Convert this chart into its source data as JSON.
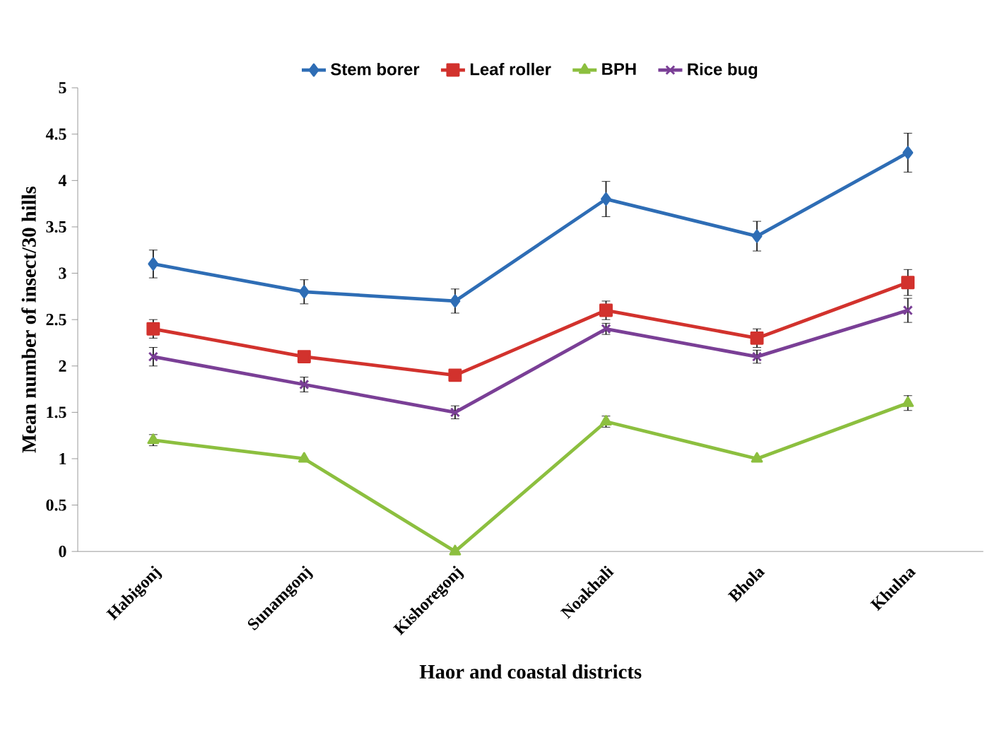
{
  "chart_data": {
    "type": "line",
    "xlabel": "Haor and coastal districts",
    "ylabel": "Mean number of insect/30 hills",
    "categories": [
      "Habigonj",
      "Sunamgonj",
      "Kishoregonj",
      "Noakhali",
      "Bhola",
      "Khulna"
    ],
    "series": [
      {
        "name": "Stem borer",
        "color": "#2e6db5",
        "marker": "diamond",
        "values": [
          3.1,
          2.8,
          2.7,
          3.8,
          3.4,
          4.3
        ],
        "errors": [
          0.15,
          0.13,
          0.13,
          0.19,
          0.16,
          0.21
        ]
      },
      {
        "name": "Leaf roller",
        "color": "#d2322d",
        "marker": "square",
        "values": [
          2.4,
          2.1,
          1.9,
          2.6,
          2.3,
          2.9
        ],
        "errors": [
          0.1,
          null,
          null,
          0.1,
          0.1,
          0.14
        ]
      },
      {
        "name": "BPH",
        "color": "#8cbf3f",
        "marker": "triangle",
        "values": [
          1.2,
          1.0,
          0.0,
          1.4,
          1.0,
          1.6
        ],
        "errors": [
          0.06,
          null,
          null,
          0.06,
          null,
          0.08
        ]
      },
      {
        "name": "Rice bug",
        "color": "#7a3f96",
        "marker": "cross",
        "values": [
          2.1,
          1.8,
          1.5,
          2.4,
          2.1,
          2.6
        ],
        "errors": [
          0.1,
          0.08,
          0.07,
          0.06,
          0.07,
          0.13
        ]
      }
    ],
    "ylim": [
      0,
      5
    ],
    "yticks": [
      0,
      0.5,
      1,
      1.5,
      2,
      2.5,
      3,
      3.5,
      4,
      4.5,
      5
    ],
    "legend": "top",
    "grid": false,
    "line_style": "solid"
  }
}
